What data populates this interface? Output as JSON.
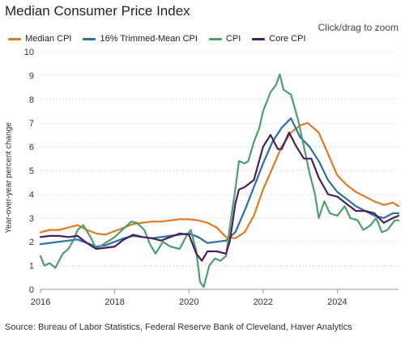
{
  "title": "Median Consumer Price Index",
  "zoom_hint": "Click/drag to zoom",
  "source": "Source: Bureau of Labor Statistics, Federal Reserve Bank of Cleveland, Haver Analytics",
  "chart_data": {
    "type": "line",
    "title": "Median Consumer Price Index",
    "xlabel": "",
    "ylabel": "Year-over-year percent change",
    "xlim": [
      2016.0,
      2025.65
    ],
    "ylim": [
      0,
      10
    ],
    "x_ticks": [
      2016,
      2018,
      2020,
      2022,
      2024
    ],
    "y_ticks": [
      0,
      1,
      2,
      3,
      4,
      5,
      6,
      7,
      8,
      9,
      10
    ],
    "grid": "horizontal dotted",
    "legend_position": "top-left",
    "series": [
      {
        "name": "Median CPI",
        "color": "#e07b24",
        "points": [
          [
            2016.0,
            2.4
          ],
          [
            2016.25,
            2.5
          ],
          [
            2016.5,
            2.5
          ],
          [
            2016.75,
            2.6
          ],
          [
            2017.0,
            2.7
          ],
          [
            2017.25,
            2.5
          ],
          [
            2017.5,
            2.35
          ],
          [
            2017.75,
            2.3
          ],
          [
            2018.0,
            2.45
          ],
          [
            2018.25,
            2.6
          ],
          [
            2018.5,
            2.75
          ],
          [
            2018.75,
            2.8
          ],
          [
            2019.0,
            2.85
          ],
          [
            2019.25,
            2.85
          ],
          [
            2019.5,
            2.9
          ],
          [
            2019.75,
            2.95
          ],
          [
            2020.0,
            2.95
          ],
          [
            2020.25,
            2.9
          ],
          [
            2020.5,
            2.8
          ],
          [
            2020.75,
            2.6
          ],
          [
            2021.0,
            2.2
          ],
          [
            2021.25,
            2.15
          ],
          [
            2021.5,
            2.4
          ],
          [
            2021.75,
            3.1
          ],
          [
            2022.0,
            4.2
          ],
          [
            2022.25,
            5.1
          ],
          [
            2022.5,
            6.0
          ],
          [
            2022.75,
            6.6
          ],
          [
            2023.0,
            6.9
          ],
          [
            2023.2,
            7.0
          ],
          [
            2023.5,
            6.6
          ],
          [
            2023.75,
            5.7
          ],
          [
            2024.0,
            4.8
          ],
          [
            2024.25,
            4.4
          ],
          [
            2024.5,
            4.1
          ],
          [
            2024.75,
            3.9
          ],
          [
            2025.0,
            3.7
          ],
          [
            2025.25,
            3.55
          ],
          [
            2025.5,
            3.65
          ],
          [
            2025.65,
            3.5
          ]
        ]
      },
      {
        "name": "16% Trimmed-Mean CPI",
        "color": "#2a6fa8",
        "points": [
          [
            2016.0,
            1.9
          ],
          [
            2016.25,
            1.95
          ],
          [
            2016.5,
            2.0
          ],
          [
            2016.75,
            2.05
          ],
          [
            2017.0,
            2.1
          ],
          [
            2017.25,
            1.95
          ],
          [
            2017.5,
            1.8
          ],
          [
            2017.75,
            1.85
          ],
          [
            2018.0,
            2.0
          ],
          [
            2018.25,
            2.15
          ],
          [
            2018.5,
            2.25
          ],
          [
            2018.75,
            2.2
          ],
          [
            2019.0,
            2.15
          ],
          [
            2019.25,
            2.2
          ],
          [
            2019.5,
            2.25
          ],
          [
            2019.75,
            2.3
          ],
          [
            2020.0,
            2.35
          ],
          [
            2020.25,
            2.2
          ],
          [
            2020.5,
            1.95
          ],
          [
            2020.75,
            2.0
          ],
          [
            2021.0,
            2.05
          ],
          [
            2021.25,
            2.4
          ],
          [
            2021.5,
            3.3
          ],
          [
            2021.75,
            4.3
          ],
          [
            2022.0,
            5.3
          ],
          [
            2022.25,
            6.2
          ],
          [
            2022.5,
            6.8
          ],
          [
            2022.75,
            7.2
          ],
          [
            2023.0,
            6.4
          ],
          [
            2023.25,
            6.0
          ],
          [
            2023.5,
            5.4
          ],
          [
            2023.75,
            4.6
          ],
          [
            2024.0,
            4.1
          ],
          [
            2024.25,
            3.8
          ],
          [
            2024.5,
            3.5
          ],
          [
            2024.75,
            3.3
          ],
          [
            2025.0,
            3.1
          ],
          [
            2025.25,
            3.0
          ],
          [
            2025.5,
            3.2
          ],
          [
            2025.65,
            3.2
          ]
        ]
      },
      {
        "name": "CPI",
        "color": "#4f9e6e",
        "points": [
          [
            2016.0,
            1.4
          ],
          [
            2016.1,
            1.0
          ],
          [
            2016.25,
            1.1
          ],
          [
            2016.4,
            0.9
          ],
          [
            2016.6,
            1.5
          ],
          [
            2016.75,
            1.7
          ],
          [
            2016.9,
            2.1
          ],
          [
            2017.0,
            2.5
          ],
          [
            2017.15,
            2.7
          ],
          [
            2017.35,
            2.2
          ],
          [
            2017.5,
            1.7
          ],
          [
            2017.7,
            1.9
          ],
          [
            2017.9,
            2.1
          ],
          [
            2018.0,
            2.2
          ],
          [
            2018.2,
            2.5
          ],
          [
            2018.45,
            2.85
          ],
          [
            2018.6,
            2.8
          ],
          [
            2018.8,
            2.5
          ],
          [
            2018.95,
            1.9
          ],
          [
            2019.1,
            1.5
          ],
          [
            2019.3,
            2.0
          ],
          [
            2019.5,
            1.8
          ],
          [
            2019.75,
            1.7
          ],
          [
            2019.95,
            2.3
          ],
          [
            2020.05,
            2.5
          ],
          [
            2020.2,
            1.6
          ],
          [
            2020.3,
            0.3
          ],
          [
            2020.4,
            0.1
          ],
          [
            2020.55,
            1.0
          ],
          [
            2020.7,
            1.3
          ],
          [
            2020.85,
            1.2
          ],
          [
            2021.0,
            1.4
          ],
          [
            2021.1,
            2.6
          ],
          [
            2021.25,
            4.2
          ],
          [
            2021.35,
            5.4
          ],
          [
            2021.5,
            5.3
          ],
          [
            2021.6,
            5.4
          ],
          [
            2021.75,
            6.2
          ],
          [
            2021.9,
            6.8
          ],
          [
            2022.0,
            7.5
          ],
          [
            2022.2,
            8.3
          ],
          [
            2022.35,
            8.6
          ],
          [
            2022.45,
            9.05
          ],
          [
            2022.55,
            8.4
          ],
          [
            2022.75,
            8.2
          ],
          [
            2022.95,
            7.1
          ],
          [
            2023.1,
            6.0
          ],
          [
            2023.25,
            4.9
          ],
          [
            2023.4,
            4.0
          ],
          [
            2023.5,
            3.0
          ],
          [
            2023.65,
            3.7
          ],
          [
            2023.8,
            3.2
          ],
          [
            2024.0,
            3.1
          ],
          [
            2024.2,
            3.5
          ],
          [
            2024.35,
            3.0
          ],
          [
            2024.55,
            2.9
          ],
          [
            2024.7,
            2.5
          ],
          [
            2024.9,
            2.7
          ],
          [
            2025.05,
            3.0
          ],
          [
            2025.2,
            2.4
          ],
          [
            2025.35,
            2.5
          ],
          [
            2025.55,
            2.9
          ],
          [
            2025.65,
            2.9
          ]
        ]
      },
      {
        "name": "Core CPI",
        "color": "#4a1f5c",
        "points": [
          [
            2016.0,
            2.2
          ],
          [
            2016.25,
            2.25
          ],
          [
            2016.5,
            2.25
          ],
          [
            2016.75,
            2.2
          ],
          [
            2017.0,
            2.25
          ],
          [
            2017.25,
            1.95
          ],
          [
            2017.5,
            1.7
          ],
          [
            2017.75,
            1.75
          ],
          [
            2018.0,
            1.8
          ],
          [
            2018.25,
            2.1
          ],
          [
            2018.5,
            2.3
          ],
          [
            2018.75,
            2.2
          ],
          [
            2019.0,
            2.15
          ],
          [
            2019.25,
            2.05
          ],
          [
            2019.5,
            2.2
          ],
          [
            2019.75,
            2.35
          ],
          [
            2020.0,
            2.3
          ],
          [
            2020.2,
            1.5
          ],
          [
            2020.35,
            1.2
          ],
          [
            2020.5,
            1.6
          ],
          [
            2020.75,
            1.6
          ],
          [
            2021.0,
            1.5
          ],
          [
            2021.1,
            2.0
          ],
          [
            2021.25,
            3.6
          ],
          [
            2021.35,
            4.2
          ],
          [
            2021.5,
            4.3
          ],
          [
            2021.75,
            4.6
          ],
          [
            2022.0,
            6.0
          ],
          [
            2022.2,
            6.5
          ],
          [
            2022.4,
            5.9
          ],
          [
            2022.5,
            5.9
          ],
          [
            2022.7,
            6.6
          ],
          [
            2022.9,
            6.0
          ],
          [
            2023.1,
            5.5
          ],
          [
            2023.3,
            5.5
          ],
          [
            2023.5,
            4.7
          ],
          [
            2023.75,
            4.0
          ],
          [
            2024.0,
            3.9
          ],
          [
            2024.25,
            3.6
          ],
          [
            2024.5,
            3.3
          ],
          [
            2024.75,
            3.3
          ],
          [
            2025.0,
            3.2
          ],
          [
            2025.25,
            2.8
          ],
          [
            2025.5,
            3.0
          ],
          [
            2025.65,
            3.1
          ]
        ]
      }
    ]
  }
}
